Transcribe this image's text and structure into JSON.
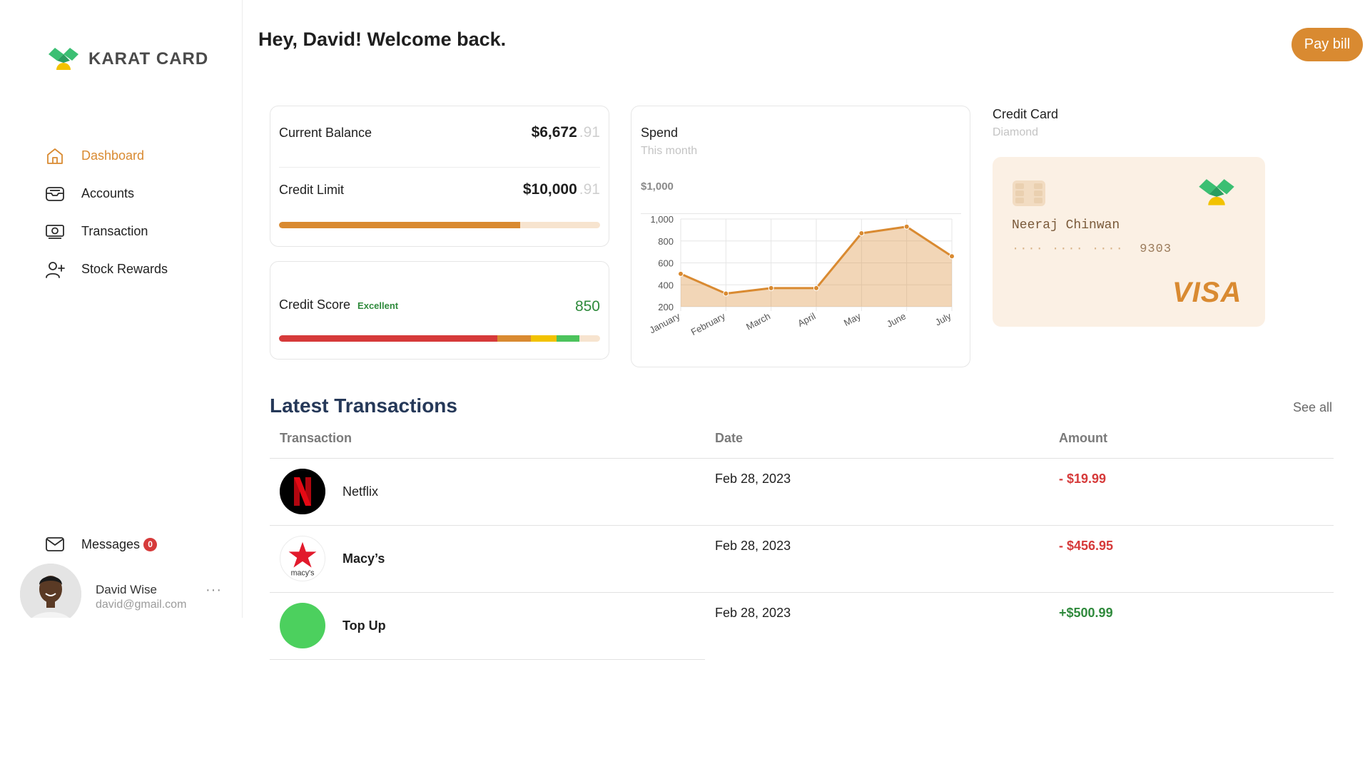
{
  "brand": {
    "name": "KARAT CARD"
  },
  "sidebar": {
    "items": [
      {
        "label": "Dashboard",
        "icon": "home-icon",
        "active": true
      },
      {
        "label": "Accounts",
        "icon": "inbox-icon",
        "active": false
      },
      {
        "label": "Transaction",
        "icon": "money-icon",
        "active": false
      },
      {
        "label": "Stock Rewards",
        "icon": "user-plus-icon",
        "active": false
      }
    ],
    "messages": {
      "label": "Messages",
      "count": "0",
      "icon": "mail-icon"
    }
  },
  "user": {
    "name": "David Wise",
    "email": "david@gmail.com",
    "more": "···"
  },
  "header": {
    "greeting": "Hey, David! Welcome back.",
    "pay_bill": "Pay bill"
  },
  "balance": {
    "current_label": "Current Balance",
    "current_value": "$6,672",
    "current_cents": ".91",
    "limit_label": "Credit Limit",
    "limit_value": "$10,000",
    "limit_cents": ".91",
    "utilization": 0.75
  },
  "credit_score": {
    "label": "Credit Score",
    "rating": "Excellent",
    "value": "850",
    "segments": [
      {
        "share": 0.68,
        "color": "#d63a3a"
      },
      {
        "share": 0.105,
        "color": "#d98a31"
      },
      {
        "share": 0.08,
        "color": "#f2c200"
      },
      {
        "share": 0.07,
        "color": "#4cc35c"
      },
      {
        "share": 0.065,
        "color": "#f7e4cf"
      }
    ]
  },
  "spend": {
    "title": "Spend",
    "subtitle": "This month",
    "total": "$1,000"
  },
  "chart_data": {
    "type": "area",
    "categories": [
      "January",
      "February",
      "March",
      "April",
      "May",
      "June",
      "July"
    ],
    "series": [
      {
        "values": [
          500,
          320,
          370,
          370,
          870,
          930,
          660
        ]
      }
    ],
    "ylim": [
      200,
      1000
    ],
    "yticks": [
      1000,
      800,
      600,
      400,
      200
    ],
    "grid": true,
    "color": "#d98a31"
  },
  "credit_card": {
    "title": "Credit Card",
    "tier": "Diamond",
    "holder": "Neeraj Chinwan",
    "masked": "···· ···· ····",
    "last4": "9303",
    "network": "VISA",
    "accent": "#d98a31",
    "background": "#fbf0e4"
  },
  "transactions": {
    "title": "Latest Transactions",
    "see_all": "See all",
    "columns": [
      "Transaction",
      "Date",
      "Amount"
    ],
    "rows": [
      {
        "name": "Netflix",
        "date": "Feb 28, 2023",
        "amount": "- $19.99",
        "logo": "netflix-logo"
      },
      {
        "name": "Macy’s",
        "date": "Feb 28, 2023",
        "amount": "- $456.95",
        "logo": "macys-logo",
        "logo_text": "macy's"
      },
      {
        "name": "Top Up",
        "date": "Feb 28, 2023",
        "amount": "+$500.99",
        "logo": "topup-logo"
      }
    ]
  }
}
